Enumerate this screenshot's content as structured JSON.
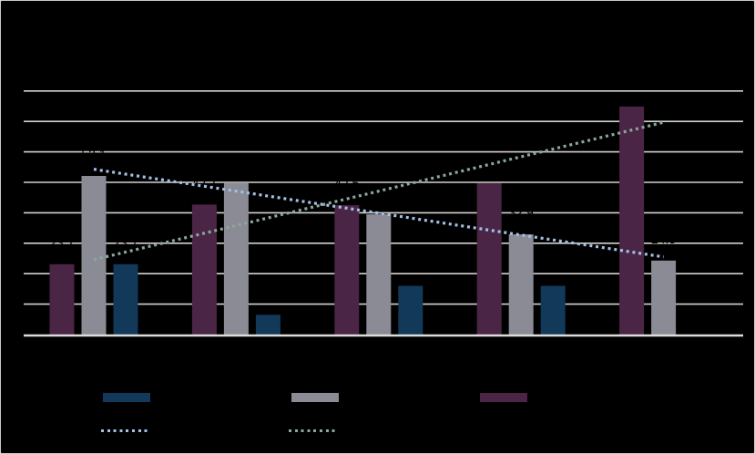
{
  "window": {
    "background_color": "#000000",
    "frame_border_color": "#c9c9c9",
    "gridline_color": "#d4d2cf",
    "baseline_color": "#dcdcda",
    "data_label_color": "#000000"
  },
  "chart_data": {
    "type": "bar",
    "subtype": "clustered-bars-with-dotted-trend-lines",
    "title": "",
    "xlabel": "",
    "ylabel": "",
    "categories": [
      "",
      "",
      "",
      "",
      ""
    ],
    "ylim": [
      0,
      80
    ],
    "gridline_step": 10,
    "grid": true,
    "legend_position": "bottom",
    "bar_series": [
      {
        "name": "navy-bars",
        "color": "#12395a",
        "values": [
          23.1,
          6.5,
          16.0,
          16.0,
          null
        ]
      },
      {
        "name": "gray-bars",
        "color": "#8a8b94",
        "values": [
          52.1,
          49.9,
          39.5,
          32.9,
          24.3
        ]
      },
      {
        "name": "plum-bars",
        "color": "#4b2545",
        "values": [
          23.1,
          42.7,
          42.5,
          49.7,
          74.9
        ]
      }
    ],
    "line_series": [
      {
        "name": "light-blue-dotted-line",
        "color": "#a4c0e4",
        "values": [
          54.3,
          47.1,
          39.9,
          32.7,
          25.5
        ]
      },
      {
        "name": "sage-dotted-line",
        "color": "#8aa79c",
        "values": [
          24.6,
          35.8,
          47.1,
          58.4,
          69.7
        ]
      }
    ],
    "data_labels_shown_for": "bar_series",
    "data_label_color": "#000000"
  },
  "legend": {
    "items": [
      {
        "key": "navy-bars",
        "label": ""
      },
      {
        "key": "gray-bars",
        "label": ""
      },
      {
        "key": "plum-bars",
        "label": ""
      },
      {
        "key": "light-blue-dotted-line",
        "label": ""
      },
      {
        "key": "sage-dotted-line",
        "label": ""
      }
    ]
  }
}
